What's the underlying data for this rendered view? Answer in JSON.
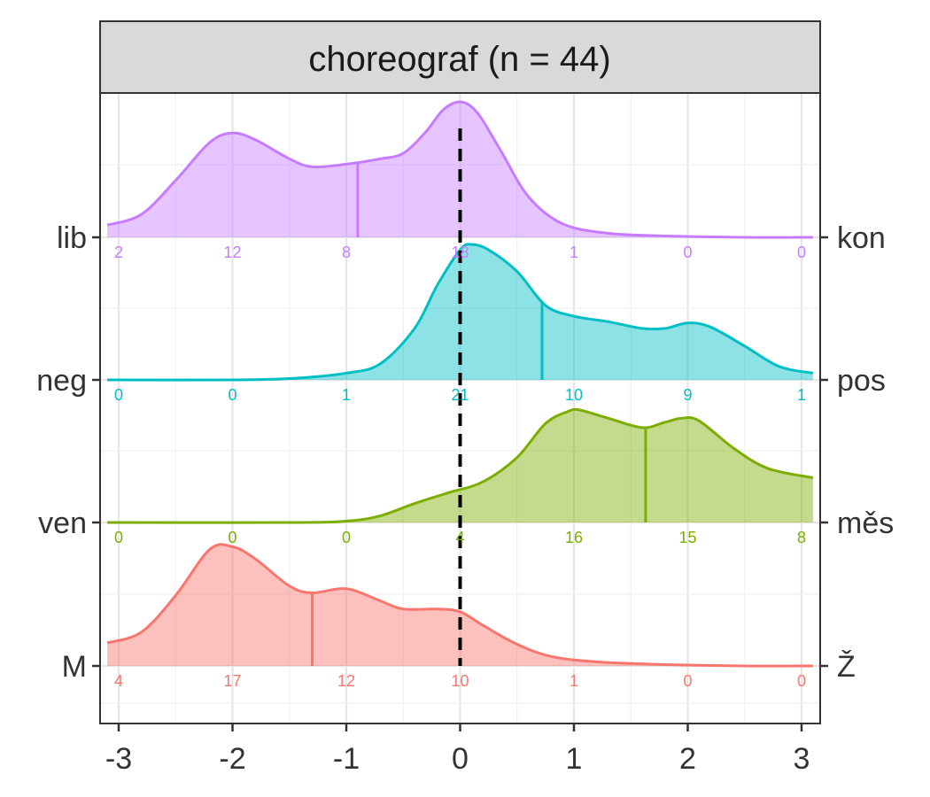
{
  "chart_data": {
    "type": "area",
    "title": "choreograf (n = 44)",
    "xlim": [
      -3.1,
      3.1
    ],
    "x_ticks": [
      "-3",
      "-2",
      "-1",
      "0",
      "1",
      "2",
      "3"
    ],
    "x_tick_values": [
      -3,
      -2,
      -1,
      0,
      1,
      2,
      3
    ],
    "reference_line_x": 0,
    "grid": true,
    "count_positions": [
      -3,
      -2,
      -1,
      0,
      1,
      2,
      3
    ],
    "series": [
      {
        "left_label": "lib",
        "right_label": "kon",
        "color": "#C77CFF",
        "mean": -0.9,
        "counts": [
          "2",
          "12",
          "8",
          "18",
          "1",
          "0",
          "0"
        ],
        "density": [
          [
            -3.1,
            0.09
          ],
          [
            -2.8,
            0.17
          ],
          [
            -2.5,
            0.42
          ],
          [
            -2.2,
            0.7
          ],
          [
            -2.0,
            0.77
          ],
          [
            -1.8,
            0.72
          ],
          [
            -1.5,
            0.58
          ],
          [
            -1.3,
            0.52
          ],
          [
            -1.0,
            0.54
          ],
          [
            -0.7,
            0.58
          ],
          [
            -0.5,
            0.62
          ],
          [
            -0.3,
            0.78
          ],
          [
            -0.15,
            0.94
          ],
          [
            0.0,
            1.0
          ],
          [
            0.15,
            0.92
          ],
          [
            0.35,
            0.65
          ],
          [
            0.6,
            0.3
          ],
          [
            0.9,
            0.1
          ],
          [
            1.3,
            0.03
          ],
          [
            1.8,
            0.01
          ],
          [
            2.5,
            0.0
          ],
          [
            3.1,
            0.0
          ]
        ]
      },
      {
        "left_label": "neg",
        "right_label": "pos",
        "color": "#00BFC4",
        "mean": 0.72,
        "counts": [
          "0",
          "0",
          "1",
          "21",
          "10",
          "9",
          "1"
        ],
        "density": [
          [
            -3.1,
            0.0
          ],
          [
            -2.0,
            0.0
          ],
          [
            -1.5,
            0.01
          ],
          [
            -1.0,
            0.05
          ],
          [
            -0.7,
            0.12
          ],
          [
            -0.4,
            0.38
          ],
          [
            -0.2,
            0.7
          ],
          [
            0.0,
            0.96
          ],
          [
            0.1,
            1.0
          ],
          [
            0.25,
            0.96
          ],
          [
            0.5,
            0.8
          ],
          [
            0.75,
            0.55
          ],
          [
            1.0,
            0.47
          ],
          [
            1.3,
            0.43
          ],
          [
            1.6,
            0.38
          ],
          [
            1.8,
            0.38
          ],
          [
            2.0,
            0.42
          ],
          [
            2.2,
            0.39
          ],
          [
            2.5,
            0.25
          ],
          [
            2.8,
            0.1
          ],
          [
            3.1,
            0.05
          ]
        ]
      },
      {
        "left_label": "ven",
        "right_label": "měs",
        "color": "#7CAE00",
        "mean": 1.63,
        "counts": [
          "0",
          "0",
          "0",
          "4",
          "16",
          "15",
          "8"
        ],
        "density": [
          [
            -3.1,
            0.0
          ],
          [
            -1.5,
            0.0
          ],
          [
            -1.0,
            0.01
          ],
          [
            -0.7,
            0.05
          ],
          [
            -0.4,
            0.14
          ],
          [
            -0.1,
            0.22
          ],
          [
            0.2,
            0.3
          ],
          [
            0.5,
            0.48
          ],
          [
            0.75,
            0.73
          ],
          [
            0.95,
            0.82
          ],
          [
            1.05,
            0.83
          ],
          [
            1.3,
            0.77
          ],
          [
            1.6,
            0.7
          ],
          [
            1.8,
            0.74
          ],
          [
            1.95,
            0.77
          ],
          [
            2.1,
            0.75
          ],
          [
            2.4,
            0.55
          ],
          [
            2.7,
            0.4
          ],
          [
            3.1,
            0.33
          ]
        ]
      },
      {
        "left_label": "M",
        "right_label": "Ž",
        "color": "#F8766D",
        "mean": -1.3,
        "counts": [
          "4",
          "17",
          "12",
          "10",
          "1",
          "0",
          "0"
        ],
        "density": [
          [
            -3.1,
            0.17
          ],
          [
            -2.8,
            0.25
          ],
          [
            -2.5,
            0.52
          ],
          [
            -2.2,
            0.86
          ],
          [
            -2.0,
            0.88
          ],
          [
            -1.8,
            0.79
          ],
          [
            -1.5,
            0.59
          ],
          [
            -1.3,
            0.54
          ],
          [
            -1.0,
            0.57
          ],
          [
            -0.7,
            0.48
          ],
          [
            -0.5,
            0.42
          ],
          [
            -0.2,
            0.42
          ],
          [
            0.0,
            0.4
          ],
          [
            0.2,
            0.3
          ],
          [
            0.5,
            0.16
          ],
          [
            0.8,
            0.07
          ],
          [
            1.2,
            0.03
          ],
          [
            1.8,
            0.01
          ],
          [
            2.5,
            0.0
          ],
          [
            3.1,
            0.0
          ]
        ]
      }
    ]
  }
}
